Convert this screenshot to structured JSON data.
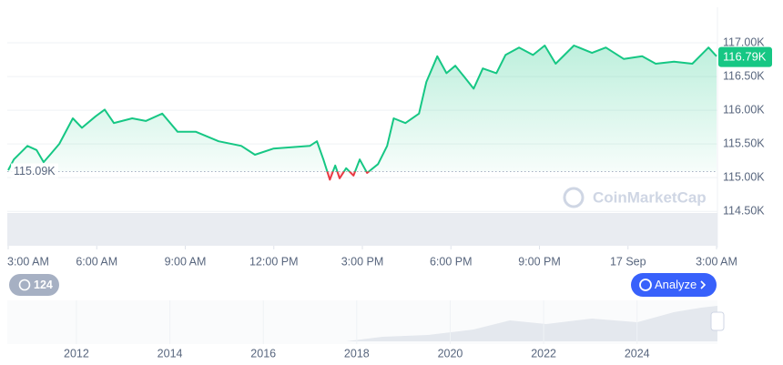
{
  "chart_data": {
    "type": "line",
    "x": [
      0,
      0.19,
      0.65,
      0.96,
      1.2,
      1.42,
      1.73,
      2.19,
      2.5,
      2.96,
      3.27,
      3.58,
      4.2,
      4.66,
      5.22,
      5.74,
      6.36,
      7.13,
      7.9,
      8.36,
      8.98,
      9.6,
      10.22,
      10.46,
      10.68,
      10.9,
      11.08,
      11.23,
      11.45,
      11.7,
      11.91,
      12.16,
      12.53,
      12.84,
      13.06,
      13.46,
      13.92,
      14.17,
      14.54,
      14.85,
      15.15,
      15.46,
      15.77,
      16.08,
      16.54,
      16.85,
      17.31,
      17.78,
      18.18,
      18.55,
      19.17,
      19.78,
      20.25,
      20.86,
      21.48,
      21.94,
      22.56,
      23.18,
      23.73,
      24
    ],
    "series": [
      {
        "color": "#16c784",
        "values": [
          115.11,
          115.27,
          115.47,
          115.41,
          115.23,
          115.34,
          115.5,
          115.88,
          115.74,
          115.91,
          116.01,
          115.81,
          115.88,
          115.84,
          115.95,
          115.68,
          115.68,
          115.54,
          115.47,
          115.34,
          115.43,
          115.45,
          115.47,
          115.54,
          115.27,
          114.97,
          115.18,
          114.99,
          115.14,
          115.03,
          115.27,
          115.07,
          115.2,
          115.47,
          115.88,
          115.81,
          115.95,
          116.42,
          116.8,
          116.55,
          116.66,
          116.49,
          116.32,
          116.62,
          116.55,
          116.82,
          116.93,
          116.82,
          116.96,
          116.69,
          116.96,
          116.85,
          116.93,
          116.76,
          116.8,
          116.69,
          116.72,
          116.69,
          116.93,
          116.8
        ]
      }
    ],
    "below_color": "#ea3943",
    "xlim": [
      0,
      24
    ],
    "xticks": [
      {
        "value": 0,
        "label": "3:00 AM"
      },
      {
        "value": 3,
        "label": "6:00 AM"
      },
      {
        "value": 6,
        "label": "9:00 AM"
      },
      {
        "value": 9,
        "label": "12:00 PM"
      },
      {
        "value": 12,
        "label": "3:00 PM"
      },
      {
        "value": 15,
        "label": "6:00 PM"
      },
      {
        "value": 18,
        "label": "9:00 PM"
      },
      {
        "value": 21,
        "label": "17 Sep"
      },
      {
        "value": 24,
        "label": "3:00 AM"
      }
    ],
    "ylim": [
      114.3,
      117.5
    ],
    "yticks": [
      {
        "value": 114.5,
        "label": "114.50K"
      },
      {
        "value": 115,
        "label": "115.00K"
      },
      {
        "value": 115.5,
        "label": "115.50K"
      },
      {
        "value": 116,
        "label": "116.00K"
      },
      {
        "value": 116.5,
        "label": "116.50K"
      },
      {
        "value": 117,
        "label": "117.00K"
      }
    ],
    "grid": true,
    "baseline": {
      "value": 115.09,
      "label": "115.09K"
    },
    "current": {
      "value": 116.79,
      "label": "116.79K"
    },
    "watermark": "CoinMarketCap",
    "badge": "124",
    "button": "Analyze",
    "navigator": {
      "xlim": [
        2010.52,
        2025.72
      ],
      "xticks": [
        2012,
        2014,
        2016,
        2018,
        2020,
        2022,
        2024
      ]
    }
  }
}
